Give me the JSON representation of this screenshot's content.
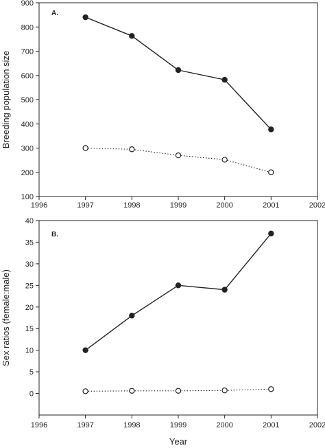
{
  "chart_data": [
    {
      "type": "line",
      "panel_label": "A.",
      "xlabel": "",
      "ylabel": "Breeding population size",
      "xlim": [
        1996,
        2002
      ],
      "ylim": [
        100,
        900
      ],
      "x_ticks": [
        1996,
        1997,
        1998,
        1999,
        2000,
        2001,
        2002
      ],
      "x_tick_labels": [
        "1996",
        "1997",
        "1998",
        "1999",
        "2000",
        "2001",
        "2002"
      ],
      "y_ticks": [
        100,
        200,
        300,
        400,
        500,
        600,
        700,
        800,
        900
      ],
      "y_tick_labels": [
        "100",
        "200",
        "300",
        "400",
        "500",
        "600",
        "700",
        "800",
        "900"
      ],
      "grid": false,
      "x": [
        1997,
        1998,
        1999,
        2000,
        2001
      ],
      "series": [
        {
          "marker": "filled-circle",
          "line_style": "solid",
          "color": "#222222",
          "values": [
            840,
            763,
            622,
            582,
            377
          ]
        },
        {
          "marker": "open-circle",
          "line_style": "dotted",
          "color": "#222222",
          "values": [
            300,
            295,
            270,
            252,
            200
          ]
        }
      ]
    },
    {
      "type": "line",
      "panel_label": "B.",
      "xlabel": "Year",
      "ylabel": "Sex ratios (female:male)",
      "xlim": [
        1996,
        2002
      ],
      "ylim": [
        -5,
        40
      ],
      "x_ticks": [
        1996,
        1997,
        1998,
        1999,
        2000,
        2001,
        2002
      ],
      "x_tick_labels": [
        "1996",
        "1997",
        "1998",
        "1999",
        "2000",
        "2001",
        "2002"
      ],
      "y_ticks": [
        0,
        5,
        10,
        15,
        20,
        25,
        30,
        35,
        40
      ],
      "y_tick_labels": [
        "0",
        "5",
        "10",
        "15",
        "20",
        "25",
        "30",
        "35",
        "40"
      ],
      "grid": false,
      "x": [
        1997,
        1998,
        1999,
        2000,
        2001
      ],
      "series": [
        {
          "marker": "filled-circle",
          "line_style": "solid",
          "color": "#222222",
          "values": [
            10,
            18,
            25,
            24,
            37
          ]
        },
        {
          "marker": "open-circle",
          "line_style": "dotted",
          "color": "#222222",
          "values": [
            0.5,
            0.6,
            0.6,
            0.7,
            1.0
          ]
        }
      ]
    }
  ]
}
